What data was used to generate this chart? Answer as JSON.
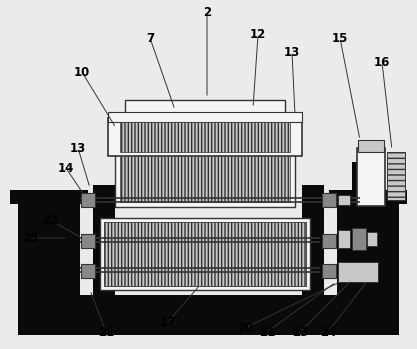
{
  "bg_color": "#ebebeb",
  "lc": "#333333",
  "dc": "#0a0a0a",
  "lgc": "#c8c8c8",
  "mgc": "#888888",
  "wc": "#f5f5f5",
  "fig_w": 4.17,
  "fig_h": 3.49,
  "dpi": 100
}
